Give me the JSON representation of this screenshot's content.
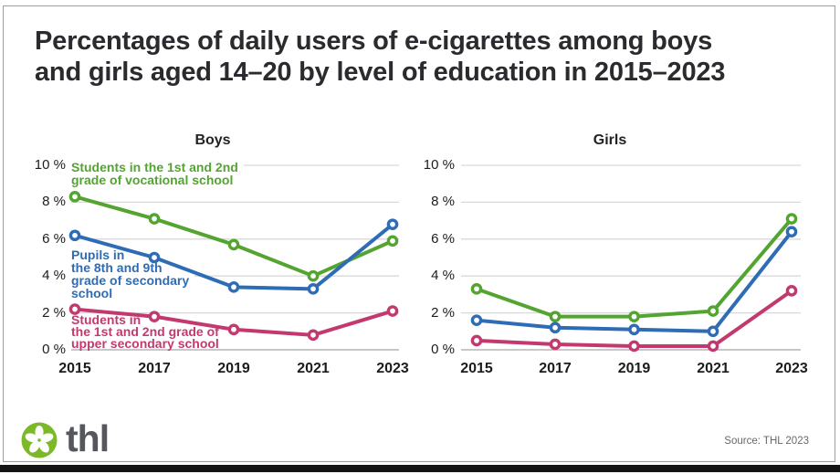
{
  "title_lines": [
    "Percentages of daily users of e-cigarettes among boys",
    "and girls aged 14–20 by level of education in 2015–2023"
  ],
  "colors": {
    "vocational": "#53A430",
    "secondary": "#2E6CB6",
    "upper_secondary": "#C3396F",
    "gridline": "#D9D9D9",
    "axis_line": "#A8A8A8",
    "logo_green": "#7CB928",
    "logo_text": "#55575C",
    "title_text": "#2A2A2F"
  },
  "chart_data": [
    {
      "type": "line",
      "title": "Boys",
      "categories": [
        "2015",
        "2017",
        "2019",
        "2021",
        "2023"
      ],
      "yticks": [
        "10 %",
        "8 %",
        "6 %",
        "4 %",
        "2 %",
        "0 %"
      ],
      "ylim": [
        0,
        10
      ],
      "grid": true,
      "legend_position": "inline-labels",
      "series": [
        {
          "name": "Students in the 1st and 2nd grade of vocational school",
          "color_key": "vocational",
          "values": [
            8.3,
            7.1,
            5.7,
            4.0,
            5.9
          ]
        },
        {
          "name": "Pupils in the 8th and 9th grade of secondary school",
          "color_key": "secondary",
          "values": [
            6.2,
            5.0,
            3.4,
            3.3,
            6.8
          ]
        },
        {
          "name": "Students in the 1st and 2nd grade of upper secondary school",
          "color_key": "upper_secondary",
          "values": [
            2.2,
            1.8,
            1.1,
            0.8,
            2.1
          ]
        }
      ],
      "legend": [
        {
          "color_key": "vocational",
          "lines": [
            "Students in the 1st and 2nd",
            "grade of vocational school"
          ]
        },
        {
          "color_key": "secondary",
          "lines": [
            "Pupils in",
            "the 8th and 9th",
            "grade of secondary",
            "school"
          ]
        },
        {
          "color_key": "upper_secondary",
          "lines": [
            "Students in",
            "the 1st and 2nd grade of",
            "upper secondary school"
          ]
        }
      ]
    },
    {
      "type": "line",
      "title": "Girls",
      "categories": [
        "2015",
        "2017",
        "2019",
        "2021",
        "2023"
      ],
      "yticks": [
        "10 %",
        "8 %",
        "6 %",
        "4 %",
        "2 %",
        "0 %"
      ],
      "ylim": [
        0,
        10
      ],
      "grid": true,
      "legend_position": "none",
      "series": [
        {
          "name": "Students in the 1st and 2nd grade of vocational school",
          "color_key": "vocational",
          "values": [
            3.3,
            1.8,
            1.8,
            2.1,
            7.1
          ]
        },
        {
          "name": "Pupils in the 8th and 9th grade of secondary school",
          "color_key": "secondary",
          "values": [
            1.6,
            1.2,
            1.1,
            1.0,
            6.4
          ]
        },
        {
          "name": "Students in the 1st and 2nd grade of upper secondary school",
          "color_key": "upper_secondary",
          "values": [
            0.5,
            0.3,
            0.2,
            0.2,
            3.2
          ]
        }
      ]
    }
  ],
  "footer": {
    "logo_text": "thl",
    "source": "Source: THL 2023"
  }
}
